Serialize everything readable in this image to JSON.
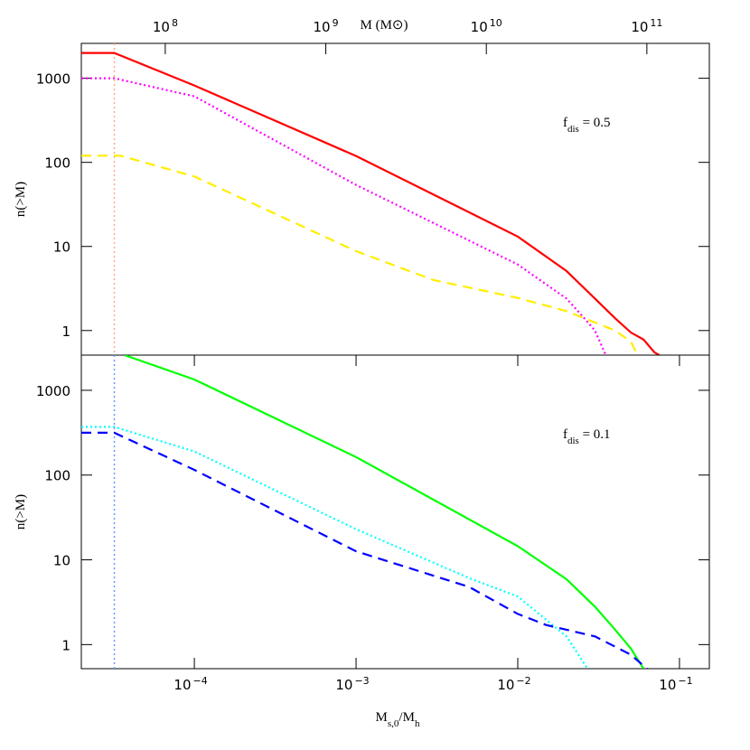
{
  "chart_data": [
    {
      "type": "line",
      "scale": "log",
      "xlim": [
        2e-05,
        0.153
      ],
      "ylim": [
        0.51,
        2600
      ],
      "yticks": [
        1,
        10,
        100,
        1000
      ],
      "x2lim": [
        30000000.0,
        245000000000.0
      ],
      "x2ticks": [
        {
          "value": 100000000.0,
          "label": "10",
          "exp": "8"
        },
        {
          "value": 1000000000.0,
          "label": "10",
          "exp": "9"
        },
        {
          "value": 10000000000.0,
          "label": "10",
          "exp": "10"
        },
        {
          "value": 100000000000.0,
          "label": "10",
          "exp": "11"
        }
      ],
      "x2label": "M (M⊙)",
      "ylabel": "n(>M)",
      "annotation": [
        {
          "text": "f"
        },
        {
          "text": "dis",
          "sub": true
        },
        {
          "text": " =  0.5"
        }
      ],
      "vline": 3.2e-05,
      "vline_color": "#ffaa88",
      "series": [
        {
          "color": "#ff0000",
          "dash": "solid",
          "x": [
            2e-05,
            3.2e-05,
            0.0001,
            0.001,
            0.01,
            0.02,
            0.03,
            0.04,
            0.05,
            0.06,
            0.07,
            0.075
          ],
          "values": [
            2000,
            2000,
            820,
            119,
            13.1,
            5.1,
            2.4,
            1.4,
            0.95,
            0.78,
            0.55,
            0.51
          ]
        },
        {
          "color": "#ff00ff",
          "dash": "dotted",
          "x": [
            2e-05,
            3.2e-05,
            0.0001,
            0.001,
            0.01,
            0.02,
            0.025,
            0.03,
            0.035
          ],
          "values": [
            1000,
            1000,
            610,
            54,
            6.1,
            2.4,
            1.5,
            1.0,
            0.51
          ]
        },
        {
          "color": "#ffee00",
          "dash": "dashed",
          "x": [
            2e-05,
            3.5e-05,
            0.0001,
            0.001,
            0.003,
            0.01,
            0.02,
            0.04,
            0.05,
            0.055
          ],
          "values": [
            120,
            120,
            68,
            8.8,
            4,
            2.44,
            1.7,
            1.0,
            0.74,
            0.51
          ]
        }
      ]
    },
    {
      "type": "line",
      "scale": "log",
      "xlim": [
        2e-05,
        0.153
      ],
      "ylim": [
        0.52,
        2600
      ],
      "yticks": [
        1,
        10,
        100,
        1000
      ],
      "xticks": [
        {
          "value": 0.0001,
          "label": "10",
          "exp": "−4"
        },
        {
          "value": 0.001,
          "label": "10",
          "exp": "−3"
        },
        {
          "value": 0.01,
          "label": "10",
          "exp": "−2"
        },
        {
          "value": 0.1,
          "label": "10",
          "exp": "−1"
        }
      ],
      "xlabel": [
        {
          "text": "M"
        },
        {
          "text": "s,0",
          "sub": true
        },
        {
          "text": "/M"
        },
        {
          "text": "h",
          "sub": true
        }
      ],
      "ylabel": "n(>M)",
      "annotation": [
        {
          "text": "f"
        },
        {
          "text": "dis",
          "sub": true
        },
        {
          "text": " =  0.1"
        }
      ],
      "vline": 3.2e-05,
      "vline_color": "#6699ff",
      "series": [
        {
          "color": "#00ff00",
          "dash": "solid",
          "x": [
            3.7e-05,
            0.0001,
            0.001,
            0.01,
            0.02,
            0.03,
            0.04,
            0.05,
            0.06
          ],
          "values": [
            2600,
            1340,
            163,
            14.5,
            5.9,
            2.8,
            1.5,
            0.9,
            0.52
          ]
        },
        {
          "color": "#00ffff",
          "dash": "dotted",
          "x": [
            2e-05,
            3.2e-05,
            0.0001,
            0.001,
            0.005,
            0.01,
            0.02,
            0.027
          ],
          "values": [
            370,
            370,
            190,
            23,
            6.1,
            3.7,
            1.25,
            0.52
          ]
        },
        {
          "color": "#0000ff",
          "dash": "dashed",
          "x": [
            2e-05,
            3.2e-05,
            0.0001,
            0.001,
            0.005,
            0.01,
            0.015,
            0.03,
            0.05,
            0.063
          ],
          "values": [
            316,
            316,
            115,
            12.6,
            4.8,
            2.3,
            1.7,
            1.25,
            0.76,
            0.52
          ]
        }
      ]
    }
  ]
}
